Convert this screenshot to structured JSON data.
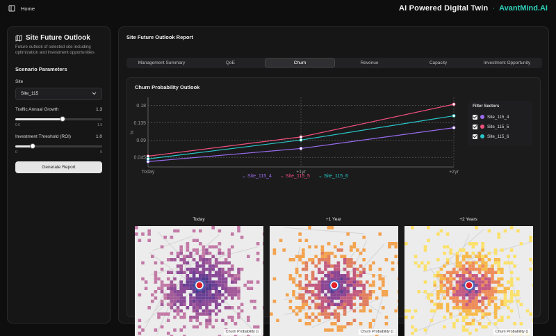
{
  "topbar": {
    "home_label": "Home",
    "brand_title": "AI Powered Digital Twin",
    "brand_sep": "·",
    "brand_name": "AvantMind.AI"
  },
  "sidebar": {
    "title": "Site Future Outlook",
    "description": "Future outlook of selected site including optimization and investment opportunities",
    "section": "Scenario Parameters",
    "site_label": "Site",
    "site_value": "Site_115",
    "growth_label": "Traffic Annual Growth",
    "growth_value": "1.3",
    "growth_min": "0.6",
    "growth_max": "1.9",
    "growth_level": 0.54,
    "roi_label": "Investment Threshold (ROI)",
    "roi_value": "1.0",
    "roi_min": "0",
    "roi_max": "5",
    "roi_level": 0.2,
    "generate_label": "Generate Report"
  },
  "main": {
    "title": "Site Future Outlook Report",
    "tabs": [
      "Management Summary",
      "QoE",
      "Churn",
      "Revenue",
      "Capacity",
      "Investment Opportunity"
    ],
    "active_tab": 2,
    "card_title": "Churn Probability Outlook",
    "filter_title": "Filter Sectors",
    "maps": [
      {
        "title": "Today",
        "caption": "Churn Probability ()"
      },
      {
        "title": "+1 Year",
        "caption": "Churn Probability ()"
      },
      {
        "title": "+2 Years",
        "caption": "Churn Probability ()"
      }
    ]
  },
  "chart_data": {
    "type": "line",
    "x": [
      "Today",
      "+1yr",
      "+2yr"
    ],
    "ylabel": "%",
    "yticks": [
      "0.045",
      "0.09",
      "0.135",
      "0.18"
    ],
    "ylim": [
      0.02,
      0.19
    ],
    "grid": true,
    "series": [
      {
        "name": "Site_115_4",
        "color": "#9b6cf0",
        "values": [
          0.034,
          0.068,
          0.122
        ]
      },
      {
        "name": "Site_115_5",
        "color": "#f0507c",
        "values": [
          0.048,
          0.098,
          0.183
        ]
      },
      {
        "name": "Site_115_6",
        "color": "#29c6c8",
        "values": [
          0.041,
          0.09,
          0.153
        ]
      }
    ]
  }
}
